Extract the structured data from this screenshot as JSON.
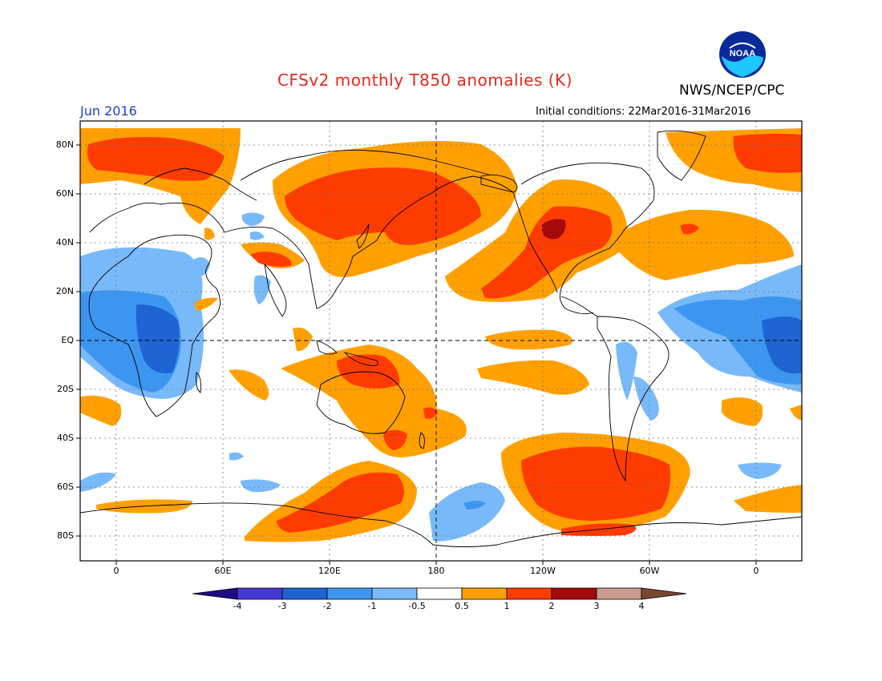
{
  "header": {
    "title": "CFSv2 monthly T850 anomalies (K)",
    "organization": "NWS/NCEP/CPC",
    "logo_text": "NOAA",
    "month": "Jun 2016",
    "initial_conditions": "Initial conditions: 22Mar2016-31Mar2016"
  },
  "axes": {
    "lat_labels": [
      "80N",
      "60N",
      "40N",
      "20N",
      "EQ",
      "20S",
      "40S",
      "60S",
      "80S"
    ],
    "lon_labels": [
      "0",
      "60E",
      "120E",
      "180",
      "120W",
      "60W",
      "0"
    ]
  },
  "colorbar": {
    "labels": [
      "-4",
      "-3",
      "-2",
      "-1",
      "-0.5",
      "0.5",
      "1",
      "2",
      "3",
      "4"
    ],
    "colors": [
      "#1e0c82",
      "#4638d2",
      "#1e64d2",
      "#3c96f0",
      "#78b9fa",
      "#ffffff",
      "#ffa000",
      "#ff3c00",
      "#a50a0a",
      "#c89b8c",
      "#784632"
    ]
  },
  "colors": {
    "title": "#e8281e",
    "month": "#1e3cdc",
    "warm1": "#ffa000",
    "warm2": "#ff3c00",
    "warm3": "#a50a0a",
    "cool1": "#78b9fa",
    "cool2": "#3c96f0",
    "cool3": "#1e64d2"
  }
}
